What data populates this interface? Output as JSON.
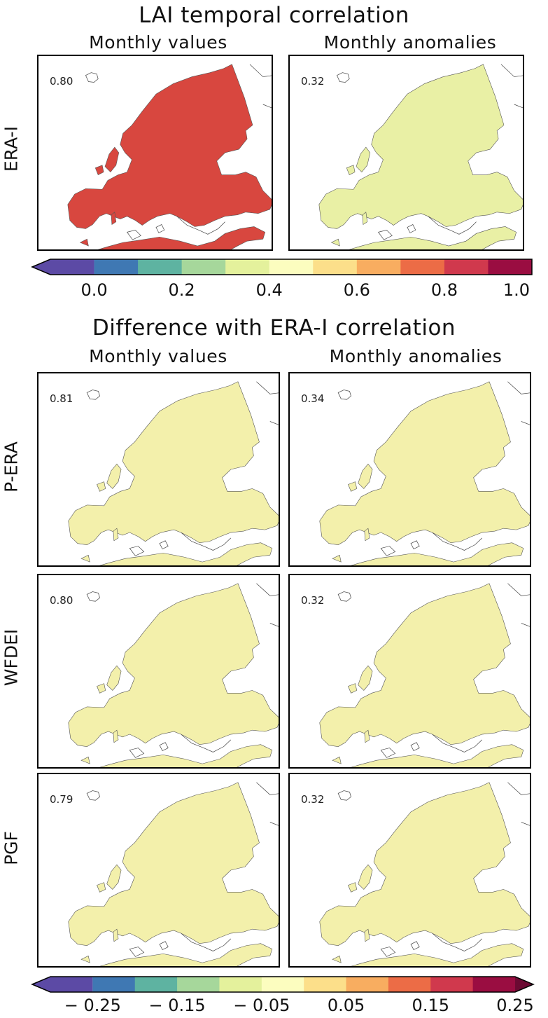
{
  "top": {
    "title": "LAI temporal correlation",
    "col_left": "Monthly values",
    "col_right": "Monthly anomalies",
    "row_label": "ERA-I",
    "stats": [
      "0.80",
      "0.32"
    ],
    "colorbar": {
      "ticks": [
        "0.0",
        "0.2",
        "0.4",
        "0.6",
        "0.8",
        "1.0"
      ],
      "colors": [
        "#3f78b3",
        "#5eb3a1",
        "#a6d79b",
        "#e4f19c",
        "#fcfdbf",
        "#fcdf8a",
        "#f8ad60",
        "#ec6c46",
        "#d0394d",
        "#9a0d41"
      ],
      "under_color": "#5c4aa5"
    }
  },
  "bottom": {
    "title": "Difference with ERA-I correlation",
    "col_left": "Monthly values",
    "col_right": "Monthly anomalies",
    "rows": [
      {
        "label": "P-ERA",
        "stats": [
          "0.81",
          "0.34"
        ]
      },
      {
        "label": "WFDEI",
        "stats": [
          "0.80",
          "0.32"
        ]
      },
      {
        "label": "PGF",
        "stats": [
          "0.79",
          "0.32"
        ]
      }
    ],
    "colorbar": {
      "ticks": [
        "− 0.25",
        "− 0.15",
        "− 0.05",
        "0.05",
        "0.15",
        "0.25"
      ],
      "colors": [
        "#3f78b3",
        "#5eb3a1",
        "#a6d79b",
        "#e4f19c",
        "#fcfdbf",
        "#fcdf8a",
        "#f8ad60",
        "#ec6c46",
        "#d0394d",
        "#9a0d41"
      ],
      "under_color": "#5c4aa5",
      "over_color": "#6b0a32"
    }
  },
  "map_fill": {
    "era_values": "#d8473f",
    "era_anomalies": "#e9f0a5",
    "diff": "#f3f0ab"
  }
}
